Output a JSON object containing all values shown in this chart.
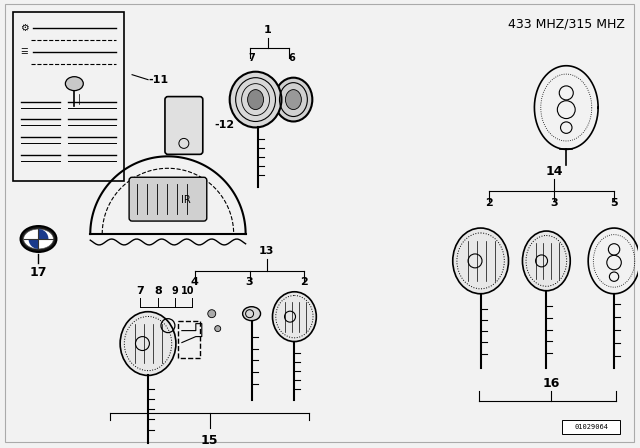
{
  "title": "433 MHZ/315 MHZ",
  "bg_color": "#f2f2f2",
  "line_color": "#000000",
  "text_color": "#000000",
  "diagram_number": "01029064"
}
